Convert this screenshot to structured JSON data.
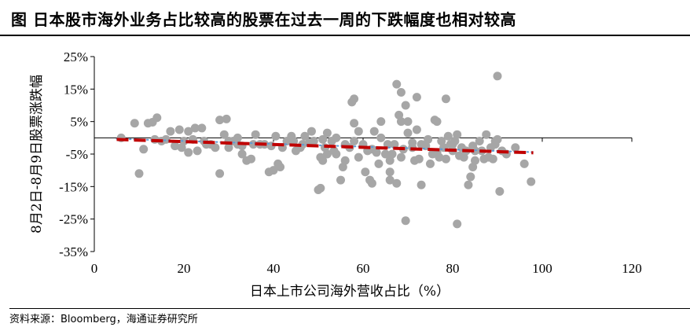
{
  "header": {
    "title": "图  日本股市海外业务占比较高的股票在过去一周的下跌幅度也相对较高"
  },
  "footer": {
    "source": "资料来源：Bloomberg，海通证券研究所"
  },
  "colors": {
    "points": "#a6a6a6",
    "trend": "#c00000",
    "trendline_dotted": "#5b9bd5",
    "axis": "#000000"
  },
  "chart_data": {
    "type": "scatter",
    "xlabel": "日本上市公司海外营收占比（%）",
    "ylabel": "8月2日-8月9日股票涨跌幅",
    "xlim": [
      0,
      120
    ],
    "ylim": [
      -35,
      25
    ],
    "x_ticks": [
      "0",
      "20",
      "40",
      "60",
      "80",
      "100",
      "120"
    ],
    "y_ticks": [
      "25%",
      "15%",
      "5%",
      "-5%",
      "-15%",
      "-25%",
      "-35%"
    ],
    "x_tick_values": [
      0,
      20,
      40,
      60,
      80,
      100,
      120
    ],
    "y_tick_values": [
      25,
      15,
      5,
      -5,
      -15,
      -25,
      -35
    ],
    "grid": false,
    "trendline": {
      "x": [
        5,
        98
      ],
      "y": [
        -0.5,
        -4.6
      ]
    },
    "trendline_dotted": {
      "x": [
        5,
        98
      ],
      "y": [
        -0.3,
        -4.4
      ]
    },
    "points": [
      [
        6,
        0
      ],
      [
        9,
        4.5
      ],
      [
        10,
        -11
      ],
      [
        11,
        -3.5
      ],
      [
        12,
        4.5
      ],
      [
        13,
        4.8
      ],
      [
        13.5,
        -0.5
      ],
      [
        14,
        6.2
      ],
      [
        15,
        -1
      ],
      [
        16,
        -0.5
      ],
      [
        17,
        2
      ],
      [
        18,
        -2.5
      ],
      [
        19,
        2.5
      ],
      [
        19.5,
        -3
      ],
      [
        20,
        -1
      ],
      [
        21,
        2
      ],
      [
        21,
        -4.5
      ],
      [
        22,
        -0.5
      ],
      [
        22.5,
        3
      ],
      [
        23,
        -4
      ],
      [
        24,
        3
      ],
      [
        24.5,
        -1
      ],
      [
        25,
        -2
      ],
      [
        26,
        -2
      ],
      [
        27,
        -3
      ],
      [
        28,
        5.5
      ],
      [
        28,
        -11
      ],
      [
        29,
        1
      ],
      [
        29.5,
        5.8
      ],
      [
        30,
        -1
      ],
      [
        30,
        -3
      ],
      [
        31,
        -1
      ],
      [
        32,
        0
      ],
      [
        32,
        -2
      ],
      [
        33,
        -2.5
      ],
      [
        33,
        -5
      ],
      [
        34,
        -7
      ],
      [
        35,
        -6.5
      ],
      [
        35.5,
        -2
      ],
      [
        36,
        1
      ],
      [
        37,
        -2
      ],
      [
        38,
        -2
      ],
      [
        39,
        -10.5
      ],
      [
        39.5,
        -2.5
      ],
      [
        40,
        -10
      ],
      [
        40.5,
        0.5
      ],
      [
        41,
        -8
      ],
      [
        41.5,
        -9
      ],
      [
        42,
        -3
      ],
      [
        43,
        -1
      ],
      [
        44,
        0.5
      ],
      [
        44.5,
        -1
      ],
      [
        45,
        -4
      ],
      [
        46,
        -3
      ],
      [
        46.5,
        -2
      ],
      [
        47,
        0.5
      ],
      [
        48,
        -1.5
      ],
      [
        48.5,
        2
      ],
      [
        49,
        -1
      ],
      [
        50,
        -16
      ],
      [
        50.5,
        -15.5
      ],
      [
        50.5,
        -6
      ],
      [
        51,
        -7
      ],
      [
        51,
        -0.5
      ],
      [
        51.5,
        -3
      ],
      [
        52,
        -5
      ],
      [
        52,
        1.5
      ],
      [
        53,
        -1
      ],
      [
        53.5,
        -4
      ],
      [
        54,
        -5
      ],
      [
        54,
        0
      ],
      [
        55,
        -13
      ],
      [
        55.5,
        -9
      ],
      [
        56,
        -7
      ],
      [
        56,
        -2
      ],
      [
        57,
        -3
      ],
      [
        57.5,
        11
      ],
      [
        58,
        12
      ],
      [
        58,
        4.5
      ],
      [
        58,
        -1
      ],
      [
        59,
        2
      ],
      [
        59,
        -6
      ],
      [
        60,
        -2
      ],
      [
        60.5,
        -10.5
      ],
      [
        61,
        -4
      ],
      [
        61.5,
        -13
      ],
      [
        62,
        -14
      ],
      [
        62,
        -3.5
      ],
      [
        62.5,
        2
      ],
      [
        63,
        -4.5
      ],
      [
        63.5,
        -8
      ],
      [
        64,
        5
      ],
      [
        64,
        0
      ],
      [
        65,
        -5
      ],
      [
        65.5,
        -2
      ],
      [
        66,
        -7
      ],
      [
        66,
        -10.5
      ],
      [
        66,
        -13
      ],
      [
        66.5,
        -5
      ],
      [
        67,
        -2
      ],
      [
        67.5,
        16.5
      ],
      [
        67.5,
        -14
      ],
      [
        68,
        7
      ],
      [
        68.5,
        14
      ],
      [
        68.5,
        5
      ],
      [
        68.5,
        -6
      ],
      [
        69,
        -3.5
      ],
      [
        69.5,
        10
      ],
      [
        69.5,
        -25.5
      ],
      [
        70,
        5
      ],
      [
        70,
        1.5
      ],
      [
        71,
        -1.5
      ],
      [
        71,
        -3
      ],
      [
        71.5,
        -7
      ],
      [
        72,
        12.5
      ],
      [
        72,
        2.5
      ],
      [
        72.5,
        -6.5
      ],
      [
        73,
        -14.5
      ],
      [
        73,
        -2
      ],
      [
        74,
        -2.5
      ],
      [
        74.5,
        -0.5
      ],
      [
        75,
        -8
      ],
      [
        75.5,
        -5
      ],
      [
        76,
        5.5
      ],
      [
        76.5,
        5
      ],
      [
        76.5,
        -4.5
      ],
      [
        77,
        -6
      ],
      [
        77.5,
        -1
      ],
      [
        78,
        -3
      ],
      [
        78.5,
        12
      ],
      [
        78.5,
        -6.5
      ],
      [
        79,
        0.5
      ],
      [
        79.5,
        -2
      ],
      [
        80,
        -4
      ],
      [
        80,
        -2
      ],
      [
        80.5,
        -1
      ],
      [
        81,
        1
      ],
      [
        81,
        -26.5
      ],
      [
        81.5,
        -5.5
      ],
      [
        82,
        -3
      ],
      [
        82.5,
        -6
      ],
      [
        83,
        -4
      ],
      [
        83.5,
        -14.5
      ],
      [
        84,
        -12
      ],
      [
        84.5,
        -2.5
      ],
      [
        84.5,
        -9
      ],
      [
        85,
        -4
      ],
      [
        85,
        -7
      ],
      [
        86,
        -1
      ],
      [
        86.5,
        -4
      ],
      [
        87,
        -6.5
      ],
      [
        87.5,
        1
      ],
      [
        88,
        -6
      ],
      [
        88.5,
        -3
      ],
      [
        89,
        -6.5
      ],
      [
        89.5,
        -2
      ],
      [
        89.5,
        -1
      ],
      [
        90,
        19
      ],
      [
        90,
        -0.5
      ],
      [
        90.5,
        -16.5
      ],
      [
        91,
        -4
      ],
      [
        92,
        -5
      ],
      [
        94,
        -3
      ],
      [
        96,
        -8
      ],
      [
        97.5,
        -13.5
      ]
    ]
  }
}
